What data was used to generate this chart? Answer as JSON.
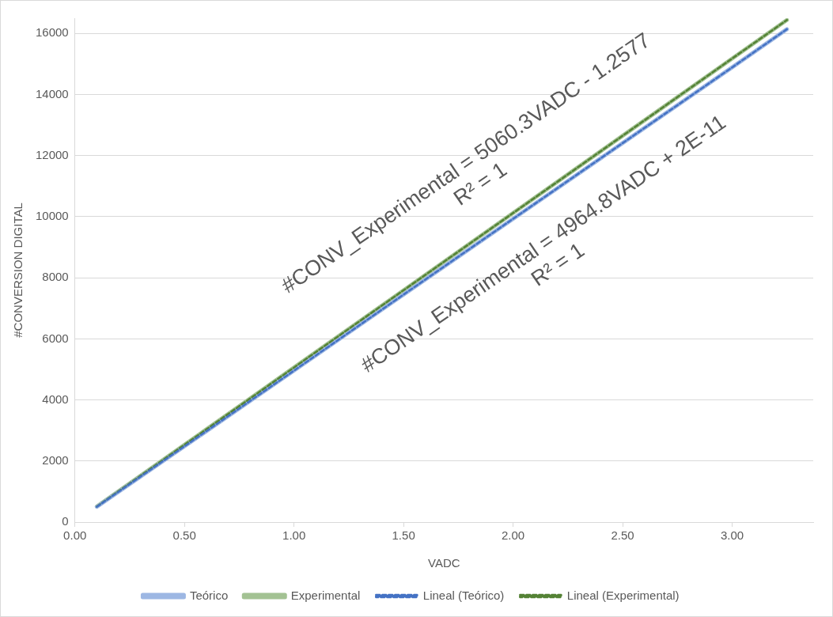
{
  "chart_data": {
    "type": "line",
    "xlabel": "VADC",
    "ylabel": "#CONVERSION DIGITAL",
    "x": [
      0.1,
      0.5,
      1.0,
      1.5,
      2.0,
      2.5,
      3.0,
      3.25
    ],
    "series": [
      {
        "name": "Teórico",
        "color": "#9db7e3",
        "values": [
          500,
          2480,
          4960,
          7450,
          9930,
          12410,
          14890,
          16140
        ]
      },
      {
        "name": "Experimental",
        "color": "#a3c293",
        "values": [
          510,
          2530,
          5060,
          7590,
          10120,
          12650,
          15180,
          16440
        ]
      },
      {
        "name": "Lineal (Teórico)",
        "color": "#4472c4",
        "line_style": "dashed",
        "values": [
          500,
          2480,
          4960,
          7450,
          9930,
          12410,
          14890,
          16140
        ]
      },
      {
        "name": "Lineal (Experimental)",
        "color": "#548235",
        "line_style": "dashed",
        "values": [
          510,
          2530,
          5060,
          7590,
          10120,
          12650,
          15180,
          16440
        ]
      }
    ],
    "xlim": [
      0,
      3.37
    ],
    "xticks": [
      {
        "value": 0,
        "label": "0.00"
      },
      {
        "value": 0.5,
        "label": "0.50"
      },
      {
        "value": 1,
        "label": "1.00"
      },
      {
        "value": 1.5,
        "label": "1.50"
      },
      {
        "value": 2,
        "label": "2.00"
      },
      {
        "value": 2.5,
        "label": "2.50"
      },
      {
        "value": 3,
        "label": "3.00"
      }
    ],
    "ylim": [
      0,
      16500
    ],
    "yticks": [
      0,
      2000,
      4000,
      6000,
      8000,
      10000,
      12000,
      14000,
      16000
    ],
    "grid": "y",
    "legend": "bottom",
    "marker": "none",
    "line_style": "solid",
    "annotations": [
      "#CONV_Experimental = 5060.3VADC - 1.2577\nR² = 1",
      "#CONV_Experimental = 4964.8VADC + 2E-11\nR² = 1"
    ]
  }
}
